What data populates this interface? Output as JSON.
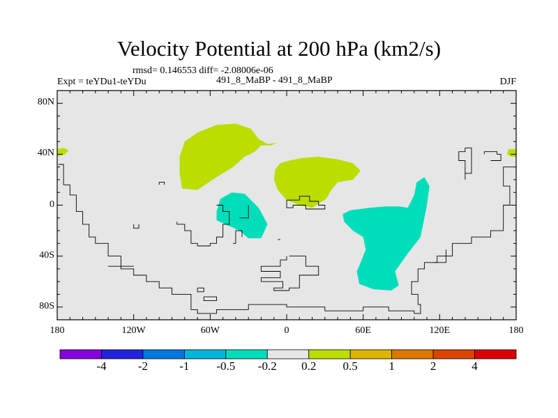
{
  "header": {
    "title": "Velocity Potential at 200 hPa (km2/s)",
    "stats": "rmsd= 0.146553  diff= -2.08006e-06",
    "experiment": "Expt = teYDu1-teYDu",
    "comparison": "491_8_MaBP - 491_8_MaBP",
    "season": "DJF"
  },
  "chart_data": {
    "type": "heatmap",
    "title": "Velocity Potential at 200 hPa (km2/s)",
    "xlabel": "",
    "ylabel": "",
    "xlim": [
      -180,
      180
    ],
    "ylim": [
      -90,
      90
    ],
    "x_ticks": [
      {
        "value": -180,
        "label": "180"
      },
      {
        "value": -120,
        "label": "120W"
      },
      {
        "value": -60,
        "label": "60W"
      },
      {
        "value": 0,
        "label": "0"
      },
      {
        "value": 60,
        "label": "60E"
      },
      {
        "value": 120,
        "label": "120E"
      },
      {
        "value": 180,
        "label": "180"
      }
    ],
    "y_ticks": [
      {
        "value": 80,
        "label": "80N"
      },
      {
        "value": 40,
        "label": "40N"
      },
      {
        "value": 0,
        "label": "0"
      },
      {
        "value": -40,
        "label": "40S"
      },
      {
        "value": -80,
        "label": "80S"
      }
    ],
    "background_bin_color": "#e6e6e6",
    "regions": [
      {
        "bin": "0.2 to 0.5",
        "color": "#bbdd00",
        "points": [
          [
            -180,
            44
          ],
          [
            -175,
            45
          ],
          [
            -171,
            43
          ],
          [
            -174,
            40
          ],
          [
            -180,
            38
          ]
        ]
      },
      {
        "bin": "0.2 to 0.5",
        "color": "#bbdd00",
        "points": [
          [
            180,
            44
          ],
          [
            174,
            44
          ],
          [
            173,
            40
          ],
          [
            176,
            38
          ],
          [
            180,
            38
          ]
        ]
      },
      {
        "bin": "0.2 to 0.5",
        "color": "#bbdd00",
        "points": [
          [
            -84,
            38
          ],
          [
            -80,
            50
          ],
          [
            -70,
            57
          ],
          [
            -55,
            63
          ],
          [
            -40,
            64
          ],
          [
            -28,
            60
          ],
          [
            -22,
            52
          ],
          [
            -15,
            48
          ],
          [
            -8,
            49
          ],
          [
            -12,
            47
          ],
          [
            -20,
            47
          ],
          [
            -25,
            42
          ],
          [
            -33,
            38
          ],
          [
            -42,
            30
          ],
          [
            -55,
            22
          ],
          [
            -70,
            12
          ],
          [
            -82,
            13
          ],
          [
            -84,
            25
          ]
        ]
      },
      {
        "bin": "0.2 to 0.5",
        "color": "#bbdd00",
        "points": [
          [
            -9,
            28
          ],
          [
            -5,
            33
          ],
          [
            2,
            35
          ],
          [
            12,
            37
          ],
          [
            25,
            38
          ],
          [
            40,
            36
          ],
          [
            52,
            33
          ],
          [
            58,
            27
          ],
          [
            52,
            20
          ],
          [
            40,
            18
          ],
          [
            35,
            12
          ],
          [
            31,
            5
          ],
          [
            20,
            -2
          ],
          [
            10,
            0
          ],
          [
            0,
            4
          ],
          [
            -7,
            12
          ],
          [
            -10,
            20
          ]
        ]
      },
      {
        "bin": "-0.5 to -0.2",
        "color": "#00ddbb",
        "points": [
          [
            -55,
            -5
          ],
          [
            -52,
            5
          ],
          [
            -43,
            10
          ],
          [
            -33,
            9
          ],
          [
            -22,
            -2
          ],
          [
            -15,
            -15
          ],
          [
            -20,
            -26
          ],
          [
            -30,
            -26
          ],
          [
            -37,
            -20
          ],
          [
            -48,
            -15
          ],
          [
            -55,
            -12
          ]
        ]
      },
      {
        "bin": "-0.5 to -0.2",
        "color": "#00ddbb",
        "points": [
          [
            45,
            -13
          ],
          [
            52,
            -20
          ],
          [
            60,
            -25
          ],
          [
            62,
            -35
          ],
          [
            58,
            -45
          ],
          [
            55,
            -52
          ],
          [
            57,
            -62
          ],
          [
            68,
            -66
          ],
          [
            82,
            -67
          ],
          [
            88,
            -63
          ],
          [
            85,
            -52
          ],
          [
            95,
            -38
          ],
          [
            105,
            -25
          ],
          [
            110,
            0
          ],
          [
            112,
            15
          ],
          [
            108,
            22
          ],
          [
            102,
            18
          ],
          [
            100,
            8
          ],
          [
            95,
            -2
          ],
          [
            88,
            -1
          ],
          [
            78,
            -1
          ],
          [
            65,
            -2
          ],
          [
            50,
            -4
          ],
          [
            44,
            -7
          ]
        ]
      }
    ],
    "coastline_segments": [
      [
        [
          -179,
          32
        ],
        [
          -175,
          32
        ],
        [
          -175,
          16
        ],
        [
          -170,
          16
        ],
        [
          -170,
          8
        ],
        [
          -165,
          8
        ],
        [
          -165,
          -5
        ],
        [
          -160,
          -5
        ],
        [
          -160,
          -15
        ],
        [
          -155,
          -15
        ],
        [
          -155,
          -25
        ],
        [
          -150,
          -25
        ],
        [
          -150,
          -30
        ],
        [
          -140,
          -30
        ],
        [
          -140,
          -40
        ],
        [
          -130,
          -40
        ],
        [
          -130,
          -50
        ],
        [
          -120,
          -50
        ],
        [
          -120,
          -55
        ],
        [
          -110,
          -55
        ],
        [
          -110,
          -60
        ],
        [
          -100,
          -60
        ],
        [
          -100,
          -65
        ],
        [
          -90,
          -65
        ],
        [
          -90,
          -70
        ],
        [
          -75,
          -70
        ],
        [
          -75,
          -82
        ],
        [
          -70,
          -82
        ],
        [
          -70,
          -85
        ],
        [
          -55,
          -85
        ],
        [
          -55,
          -82
        ],
        [
          -30,
          -82
        ],
        [
          -30,
          -78
        ],
        [
          0,
          -78
        ],
        [
          0,
          -80
        ],
        [
          30,
          -80
        ],
        [
          30,
          -83
        ],
        [
          60,
          -83
        ],
        [
          60,
          -80
        ],
        [
          80,
          -80
        ],
        [
          80,
          -83
        ],
        [
          100,
          -83
        ],
        [
          100,
          -85
        ],
        [
          105,
          -85
        ],
        [
          105,
          -78
        ],
        [
          103,
          -78
        ],
        [
          103,
          -70
        ],
        [
          98,
          -70
        ],
        [
          98,
          -60
        ],
        [
          103,
          -60
        ],
        [
          103,
          -50
        ],
        [
          108,
          -50
        ],
        [
          108,
          -45
        ],
        [
          118,
          -45
        ],
        [
          118,
          -40
        ],
        [
          130,
          -40
        ],
        [
          130,
          -30
        ],
        [
          145,
          -30
        ],
        [
          145,
          -25
        ],
        [
          160,
          -25
        ],
        [
          160,
          -20
        ],
        [
          170,
          -20
        ],
        [
          170,
          0
        ],
        [
          175,
          0
        ],
        [
          175,
          15
        ],
        [
          170,
          15
        ],
        [
          170,
          30
        ],
        [
          178,
          30
        ]
      ],
      [
        [
          -100,
          16
        ],
        [
          -100,
          18
        ],
        [
          -96,
          18
        ],
        [
          -96,
          16
        ]
      ],
      [
        [
          -86,
          -13
        ],
        [
          -86,
          -15
        ],
        [
          -80,
          -15
        ],
        [
          -80,
          -20
        ],
        [
          -75,
          -20
        ],
        [
          -75,
          -30
        ],
        [
          -70,
          -30
        ],
        [
          -70,
          -32
        ],
        [
          -60,
          -32
        ],
        [
          -60,
          -30
        ],
        [
          -55,
          -30
        ],
        [
          -55,
          -25
        ],
        [
          -50,
          -25
        ],
        [
          -50,
          -15
        ],
        [
          -45,
          -15
        ],
        [
          -45,
          -5
        ],
        [
          -50,
          -5
        ],
        [
          -50,
          0
        ],
        [
          -55,
          0
        ]
      ],
      [
        [
          -120,
          -15
        ],
        [
          -120,
          -18
        ],
        [
          -116,
          -18
        ],
        [
          -116,
          -15
        ]
      ],
      [
        [
          0,
          -40
        ],
        [
          0,
          -43
        ],
        [
          -5,
          -43
        ],
        [
          -5,
          -48
        ],
        [
          -20,
          -48
        ],
        [
          -20,
          -52
        ],
        [
          -5,
          -52
        ],
        [
          -5,
          -57
        ],
        [
          -20,
          -57
        ],
        [
          -20,
          -60
        ],
        [
          -3,
          -60
        ],
        [
          -3,
          -65
        ],
        [
          -10,
          -65
        ],
        [
          -10,
          -67
        ],
        [
          2,
          -67
        ],
        [
          2,
          -65
        ],
        [
          10,
          -65
        ],
        [
          10,
          -55
        ],
        [
          25,
          -55
        ],
        [
          25,
          -48
        ],
        [
          15,
          -48
        ],
        [
          15,
          -40
        ],
        [
          2,
          -40
        ]
      ],
      [
        [
          0,
          0
        ],
        [
          0,
          4
        ],
        [
          10,
          4
        ],
        [
          10,
          7
        ],
        [
          18,
          7
        ],
        [
          18,
          3
        ],
        [
          25,
          3
        ],
        [
          25,
          0
        ],
        [
          30,
          0
        ],
        [
          30,
          -3
        ],
        [
          15,
          -3
        ],
        [
          15,
          0
        ],
        [
          5,
          0
        ],
        [
          5,
          -2
        ],
        [
          0,
          -2
        ],
        [
          0,
          0
        ]
      ],
      [
        [
          -70,
          -65
        ],
        [
          -70,
          -68
        ],
        [
          -65,
          -68
        ],
        [
          -65,
          -65
        ],
        [
          -70,
          -65
        ]
      ],
      [
        [
          -65,
          -72
        ],
        [
          -65,
          -75
        ],
        [
          -55,
          -75
        ],
        [
          -55,
          -72
        ],
        [
          -65,
          -72
        ]
      ],
      [
        [
          -42,
          -30
        ],
        [
          -40,
          -30
        ],
        [
          -40,
          -20
        ],
        [
          -35,
          -20
        ],
        [
          -35,
          -25
        ]
      ],
      [
        [
          -37,
          -10
        ],
        [
          -30,
          -10
        ],
        [
          -30,
          0
        ]
      ],
      [
        [
          -7,
          -27
        ],
        [
          -5,
          -27
        ]
      ],
      [
        [
          140,
          20
        ],
        [
          140,
          25
        ],
        [
          145,
          25
        ],
        [
          145,
          45
        ],
        [
          140,
          45
        ],
        [
          140,
          42
        ],
        [
          135,
          42
        ],
        [
          135,
          35
        ],
        [
          140,
          35
        ],
        [
          140,
          25
        ]
      ],
      [
        [
          155,
          40
        ],
        [
          155,
          42
        ],
        [
          165,
          42
        ],
        [
          165,
          40
        ],
        [
          168,
          40
        ],
        [
          168,
          35
        ],
        [
          160,
          35
        ]
      ],
      [
        [
          -140,
          -48
        ],
        [
          -120,
          -48
        ]
      ],
      [
        [
          125,
          -35
        ],
        [
          125,
          -45
        ],
        [
          115,
          -45
        ]
      ]
    ],
    "legend": {
      "colors": [
        "#8800dd",
        "#2222dd",
        "#0077dd",
        "#00b4dd",
        "#00ddbb",
        "#e6e6e6",
        "#bbdd00",
        "#ddb400",
        "#dd7700",
        "#dd4400",
        "#dd0000"
      ],
      "labels": [
        "-4",
        "-2",
        "-1",
        "-0.5",
        "-0.2",
        "0.2",
        "0.5",
        "1",
        "2",
        "4"
      ]
    }
  }
}
